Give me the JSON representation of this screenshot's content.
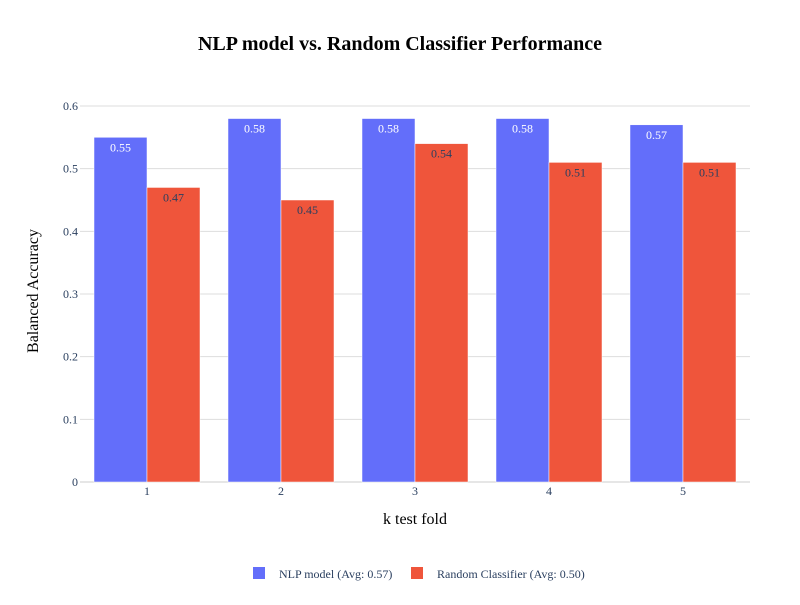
{
  "chart_data": {
    "type": "bar",
    "title": "NLP model vs. Random Classifier Performance",
    "xlabel": "k test fold",
    "ylabel": "Balanced Accuracy",
    "categories": [
      "1",
      "2",
      "3",
      "4",
      "5"
    ],
    "ylim": [
      0,
      0.6
    ],
    "yticks": [
      "0",
      "0.1",
      "0.2",
      "0.3",
      "0.4",
      "0.5",
      "0.6"
    ],
    "ytick_values": [
      0,
      0.1,
      0.2,
      0.3,
      0.4,
      0.5,
      0.6
    ],
    "grid": true,
    "legend_position": "bottom-center",
    "series": [
      {
        "name": "NLP model (Avg: 0.57)",
        "color": "#636efa",
        "values": [
          0.55,
          0.58,
          0.58,
          0.58,
          0.57
        ],
        "labels": [
          "0.55",
          "0.58",
          "0.58",
          "0.58",
          "0.57"
        ]
      },
      {
        "name": "Random Classifier (Avg: 0.50)",
        "color": "#ef553b",
        "values": [
          0.47,
          0.45,
          0.54,
          0.51,
          0.51
        ],
        "labels": [
          "0.47",
          "0.45",
          "0.54",
          "0.51",
          "0.51"
        ]
      }
    ]
  }
}
